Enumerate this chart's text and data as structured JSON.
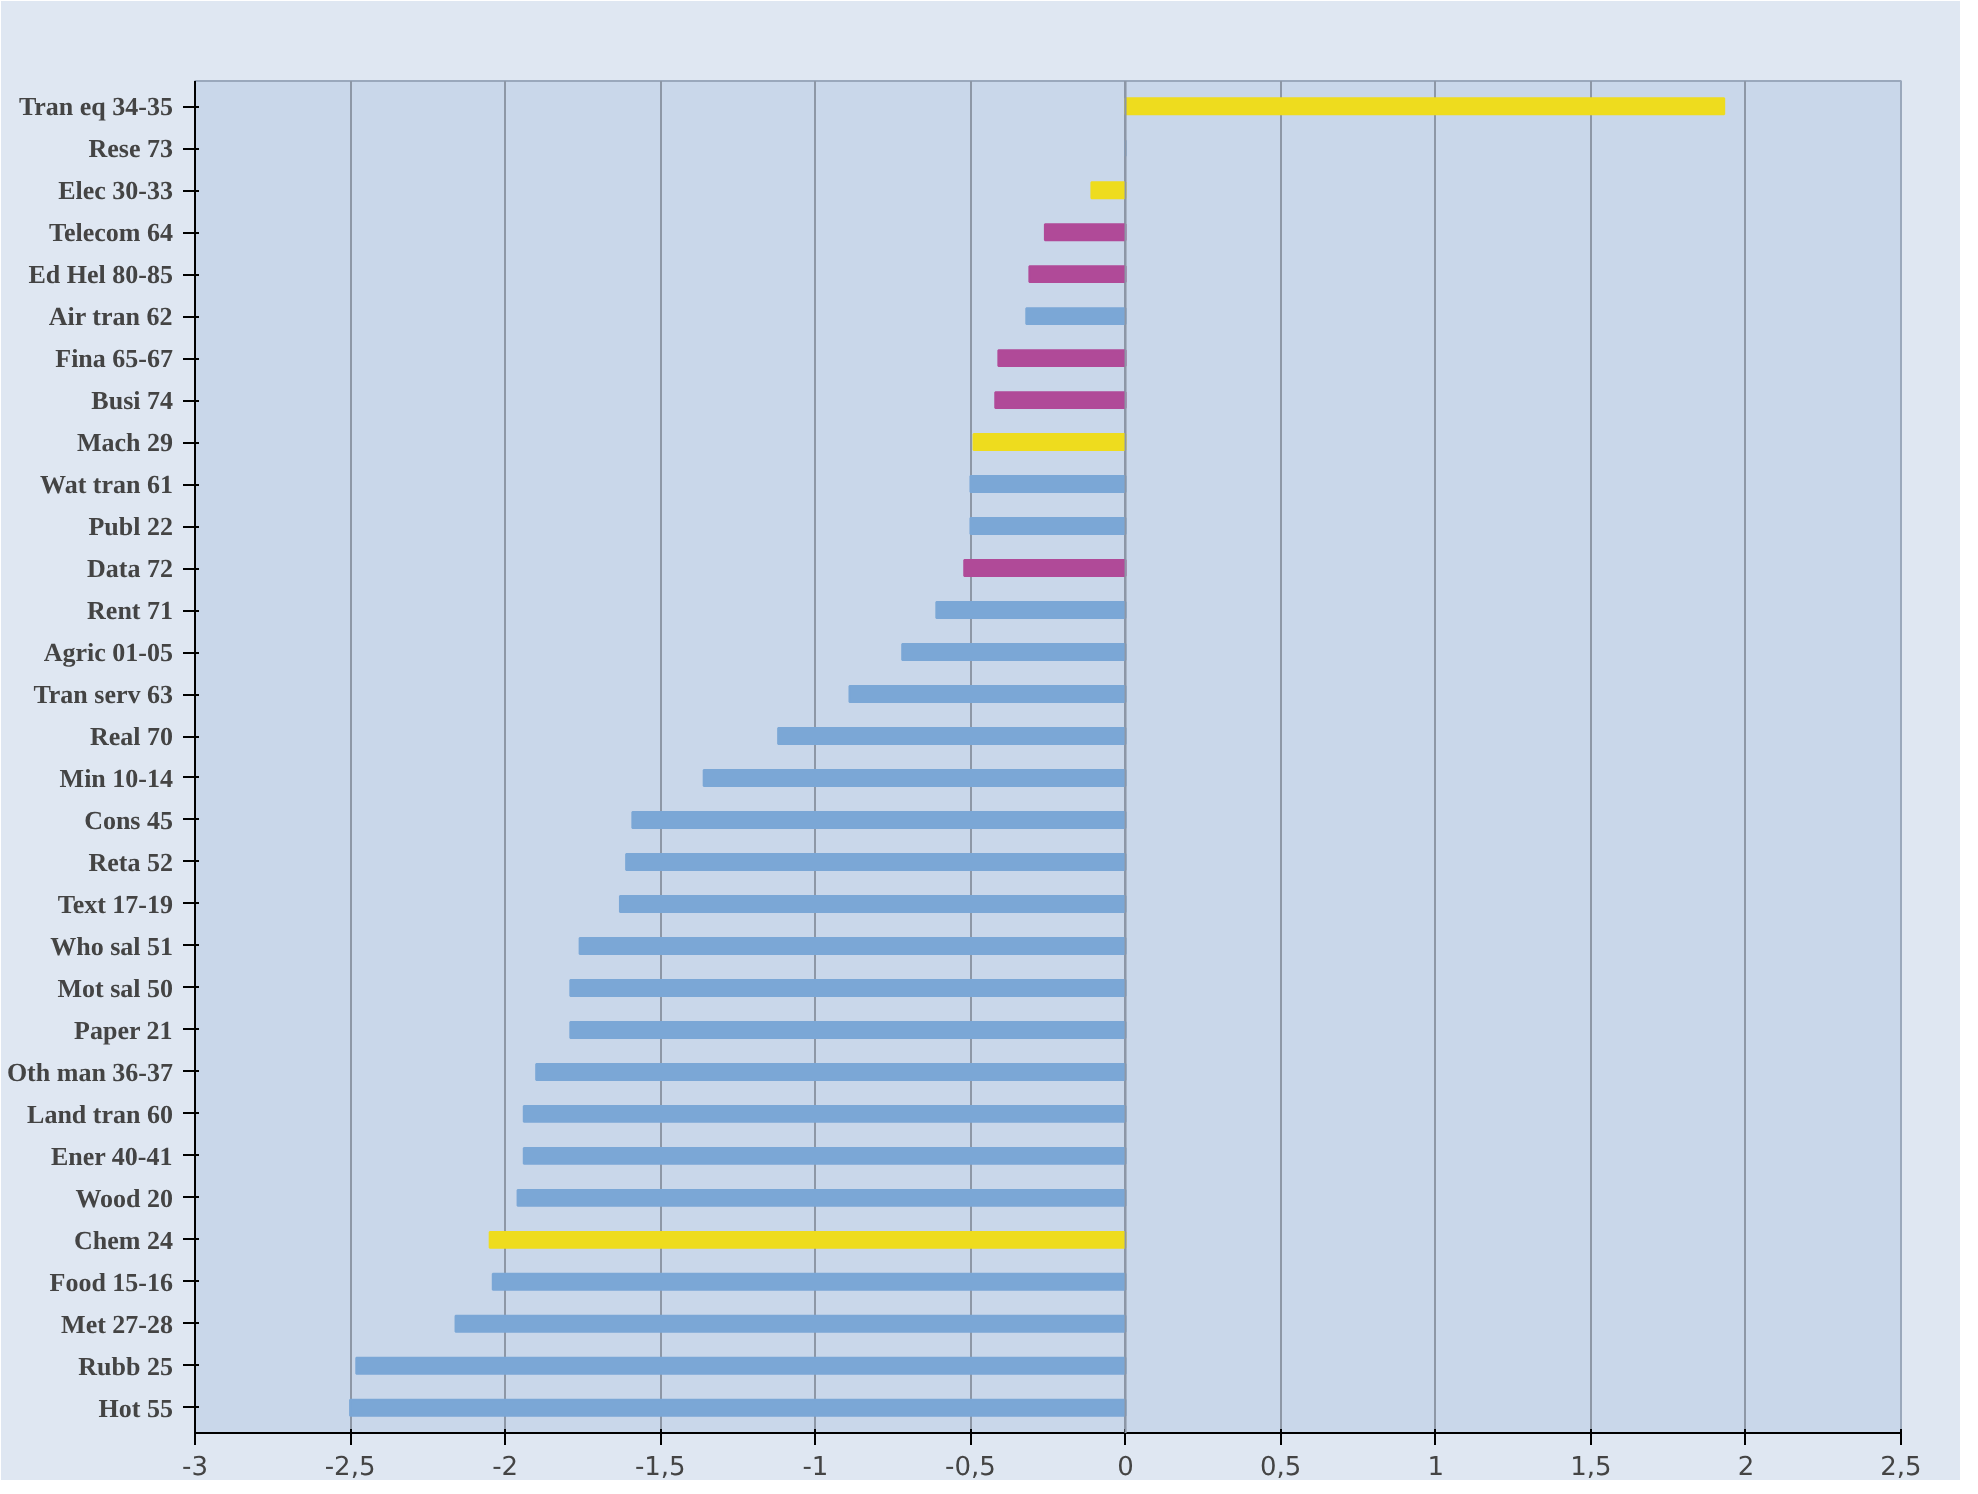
{
  "chart_data": {
    "type": "bar",
    "orientation": "horizontal",
    "categories": [
      "Tran eq 34-35",
      "Rese 73",
      "Elec 30-33",
      "Telecom 64",
      "Ed Hel 80-85",
      "Air tran 62",
      "Fina 65-67",
      "Busi 74",
      "Mach 29",
      "Wat tran 61",
      "Publ 22",
      "Data 72",
      "Rent 71",
      "Agric 01-05",
      "Tran serv 63",
      "Real 70",
      "Min 10-14",
      "Cons 45",
      "Reta 52",
      "Text 17-19",
      "Who sal 51",
      "Mot sal 50",
      "Paper 21",
      "Oth man 36-37",
      "Land tran 60",
      "Ener 40-41",
      "Wood 20",
      "Chem 24",
      "Food 15-16",
      "Met 27-28",
      "Rubb 25",
      "Hot 55"
    ],
    "values": [
      1.93,
      0,
      -0.11,
      -0.26,
      -0.31,
      -0.32,
      -0.41,
      -0.42,
      -0.49,
      -0.5,
      -0.5,
      -0.52,
      -0.61,
      -0.72,
      -0.89,
      -1.12,
      -1.36,
      -1.59,
      -1.61,
      -1.63,
      -1.76,
      -1.79,
      -1.79,
      -1.9,
      -1.94,
      -1.94,
      -1.96,
      -2.05,
      -2.04,
      -2.16,
      -2.48,
      -2.5
    ],
    "colors": [
      "#eedc1e",
      "#7ba7d6",
      "#eedc1e",
      "#b04a98",
      "#b04a98",
      "#7ba7d6",
      "#b04a98",
      "#b04a98",
      "#eedc1e",
      "#7ba7d6",
      "#7ba7d6",
      "#b04a98",
      "#7ba7d6",
      "#7ba7d6",
      "#7ba7d6",
      "#7ba7d6",
      "#7ba7d6",
      "#7ba7d6",
      "#7ba7d6",
      "#7ba7d6",
      "#7ba7d6",
      "#7ba7d6",
      "#7ba7d6",
      "#7ba7d6",
      "#7ba7d6",
      "#7ba7d6",
      "#7ba7d6",
      "#eedc1e",
      "#7ba7d6",
      "#7ba7d6",
      "#7ba7d6",
      "#7ba7d6"
    ],
    "xlim": [
      -3,
      2.5
    ],
    "xticks": [
      -3,
      {
        "value": -2.5,
        "label": "-2,5"
      },
      -2,
      {
        "value": -1.5,
        "label": "-1,5"
      },
      -1,
      {
        "value": -0.5,
        "label": "-0,5"
      },
      0,
      {
        "value": 0.5,
        "label": "0,5"
      },
      1,
      {
        "value": 1.5,
        "label": "1,5"
      },
      2,
      {
        "value": 2.5,
        "label": "2,5"
      }
    ],
    "grid": "x"
  }
}
